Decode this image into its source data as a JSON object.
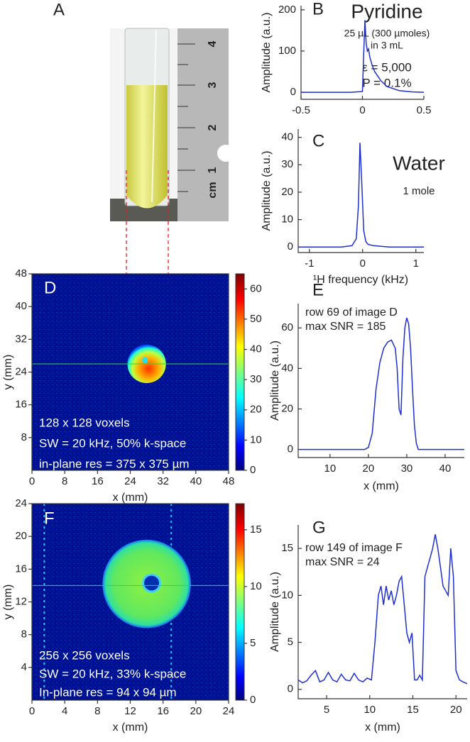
{
  "photo": {
    "panel": "A",
    "ruler_labels": [
      "1",
      "2",
      "3",
      "4"
    ],
    "unit": "cm"
  },
  "chart_data": [
    {
      "type": "line",
      "panel": "B",
      "ylabel": "Amplitude (a.u.)",
      "color": "#1f2fd0",
      "annotations": [
        "Pyridine",
        "25 µL (300 µmoles)",
        "in 3 mL",
        "ε = 5,000",
        "P = 0.1%"
      ],
      "xlim": [
        -0.5,
        0.5
      ],
      "xticks": [
        -0.5,
        0,
        0.5
      ],
      "ylim": [
        -17,
        210
      ],
      "yticks": [
        0,
        100,
        200
      ],
      "x": [
        -0.5,
        -0.3,
        -0.1,
        0,
        0.01,
        0.02,
        0.03,
        0.04,
        0.05,
        0.06,
        0.08,
        0.1,
        0.15,
        0.2,
        0.3,
        0.4,
        0.5
      ],
      "values": [
        0,
        0,
        0,
        2,
        90,
        175,
        120,
        100,
        105,
        85,
        65,
        50,
        28,
        14,
        4,
        1,
        0
      ]
    },
    {
      "type": "line",
      "panel": "C",
      "ylabel": "Amplitude (a.u.)",
      "xlabel": "¹H frequency (kHz)",
      "color": "#1f2fd0",
      "annotations": [
        "Water",
        "1 mole"
      ],
      "xlim": [
        -1.21,
        1.15
      ],
      "xticks": [
        -1,
        0,
        1
      ],
      "ylim": [
        -2,
        43
      ],
      "yticks": [
        0,
        10,
        20,
        30,
        40
      ],
      "x": [
        -1.2,
        -0.8,
        -0.4,
        -0.2,
        -0.12,
        -0.08,
        -0.05,
        -0.02,
        0.02,
        0.06,
        0.1,
        0.2,
        0.5,
        0.8,
        1.15
      ],
      "values": [
        0,
        0,
        0,
        0.5,
        3,
        15,
        38,
        25,
        6,
        2,
        1,
        0.5,
        0,
        0,
        0
      ]
    },
    {
      "type": "heatmap",
      "panel": "D",
      "xlabel": "x (mm)",
      "ylabel": "y (mm)",
      "annotations": [
        "128 x 128 voxels",
        "SW = 20 kHz, 50% k-space",
        "in-plane res = 375 x 375 µm"
      ],
      "xlim": [
        0,
        48
      ],
      "xticks": [
        0,
        8,
        16,
        24,
        32,
        40,
        48
      ],
      "ylim": [
        0,
        48
      ],
      "yticks": [
        8,
        16,
        24,
        32,
        40,
        48
      ],
      "clim": [
        0,
        65
      ],
      "cticks": [
        0,
        10,
        20,
        30,
        40,
        50,
        60
      ]
    },
    {
      "type": "line",
      "panel": "E",
      "ylabel": "Amplitude (a.u.)",
      "xlabel": "x (mm)",
      "color": "#1f2fd0",
      "annotations": [
        "row 69 of image D",
        "max SNR = 185"
      ],
      "xlim": [
        1.7,
        45
      ],
      "xticks": [
        10,
        20,
        30,
        40
      ],
      "ylim": [
        -4,
        72
      ],
      "yticks": [
        0,
        20,
        40,
        60
      ],
      "x": [
        2,
        5,
        10,
        15,
        19,
        20,
        21,
        22,
        23,
        24,
        25,
        26,
        27,
        27.5,
        28,
        28.5,
        29,
        29.5,
        30,
        30.5,
        31,
        31.5,
        32,
        32.5,
        33,
        35,
        40,
        45
      ],
      "values": [
        0,
        0,
        0,
        0,
        0,
        1,
        8,
        30,
        43,
        50,
        53,
        54,
        50,
        40,
        20,
        17,
        45,
        60,
        65,
        62,
        50,
        30,
        12,
        3,
        0,
        0,
        0,
        0
      ]
    },
    {
      "type": "heatmap",
      "panel": "F",
      "xlabel": "x (mm)",
      "ylabel": "y (mm)",
      "annotations": [
        "256 x 256 voxels",
        "SW = 20 kHz, 33% k-space",
        "In-plane res = 94 x 94 µm"
      ],
      "xlim": [
        0,
        24
      ],
      "xticks": [
        0,
        4,
        8,
        12,
        16,
        20,
        24
      ],
      "ylim": [
        0,
        24
      ],
      "yticks": [
        4,
        8,
        12,
        16,
        20,
        24
      ],
      "clim": [
        0,
        17.3
      ],
      "cticks": [
        0,
        5,
        10,
        15
      ]
    },
    {
      "type": "line",
      "panel": "G",
      "ylabel": "Amplitude (a.u.)",
      "xlabel": "x (mm)",
      "color": "#1f2fd0",
      "annotations": [
        "row 149 of image F",
        "max SNR = 24"
      ],
      "xlim": [
        1.7,
        21.3
      ],
      "xticks": [
        5,
        10,
        15,
        20
      ],
      "ylim": [
        -1,
        17.5
      ],
      "yticks": [
        0,
        5,
        10,
        15
      ],
      "x": [
        1.7,
        2.2,
        2.7,
        3.2,
        3.7,
        4.2,
        4.7,
        5.2,
        5.7,
        6.2,
        6.7,
        7.2,
        7.7,
        8.2,
        8.7,
        9.2,
        9.7,
        10.2,
        10.6,
        11,
        11.3,
        11.6,
        11.9,
        12.2,
        12.5,
        12.8,
        13.1,
        13.4,
        13.7,
        14,
        14.3,
        14.6,
        14.9,
        15.2,
        15.5,
        15.8,
        16.1,
        16.4,
        16.7,
        17,
        17.3,
        17.6,
        17.9,
        18.2,
        18.5,
        18.8,
        19.1,
        19.4,
        19.7,
        20,
        20.4,
        20.8,
        21.3
      ],
      "values": [
        1,
        0.7,
        0.9,
        1.5,
        2,
        0.8,
        1,
        1.8,
        1,
        0.8,
        1.6,
        1,
        0.9,
        1.7,
        1,
        0.8,
        1.2,
        1,
        5,
        10,
        11,
        9,
        11,
        9.5,
        10.5,
        9,
        10,
        11.5,
        12,
        9,
        6,
        5,
        6,
        1,
        1,
        1.5,
        1,
        12,
        13,
        14,
        15,
        16.5,
        15,
        13,
        11,
        10.5,
        10,
        15,
        12,
        2,
        1,
        0.8,
        0.6
      ]
    }
  ]
}
